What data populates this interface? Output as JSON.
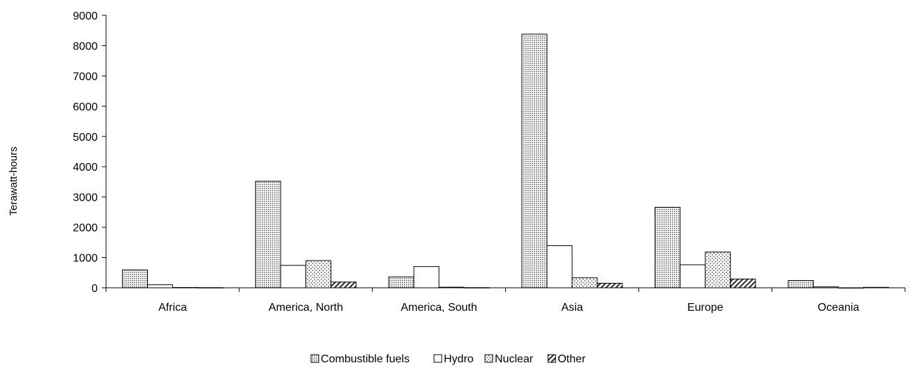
{
  "chart_data": {
    "type": "bar",
    "title": "",
    "xlabel": "",
    "ylabel": "Terawatt-hours",
    "ylim": [
      0,
      9000
    ],
    "yticks": [
      0,
      1000,
      2000,
      3000,
      4000,
      5000,
      6000,
      7000,
      8000,
      9000
    ],
    "grid": false,
    "legend_position": "bottom",
    "categories": [
      "Africa",
      "America, North",
      "America, South",
      "Asia",
      "Europe",
      "Oceania"
    ],
    "series": [
      {
        "name": "Combustible fuels",
        "pattern": "dense-dots",
        "values": [
          590,
          3520,
          360,
          8380,
          2660,
          240
        ]
      },
      {
        "name": "Hydro",
        "pattern": "none",
        "values": [
          100,
          740,
          700,
          1390,
          760,
          30
        ]
      },
      {
        "name": "Nuclear",
        "pattern": "sparse-dots",
        "values": [
          10,
          900,
          20,
          330,
          1180,
          0
        ]
      },
      {
        "name": "Other",
        "pattern": "diagonal-hatch",
        "values": [
          5,
          190,
          5,
          150,
          290,
          15
        ]
      }
    ]
  }
}
